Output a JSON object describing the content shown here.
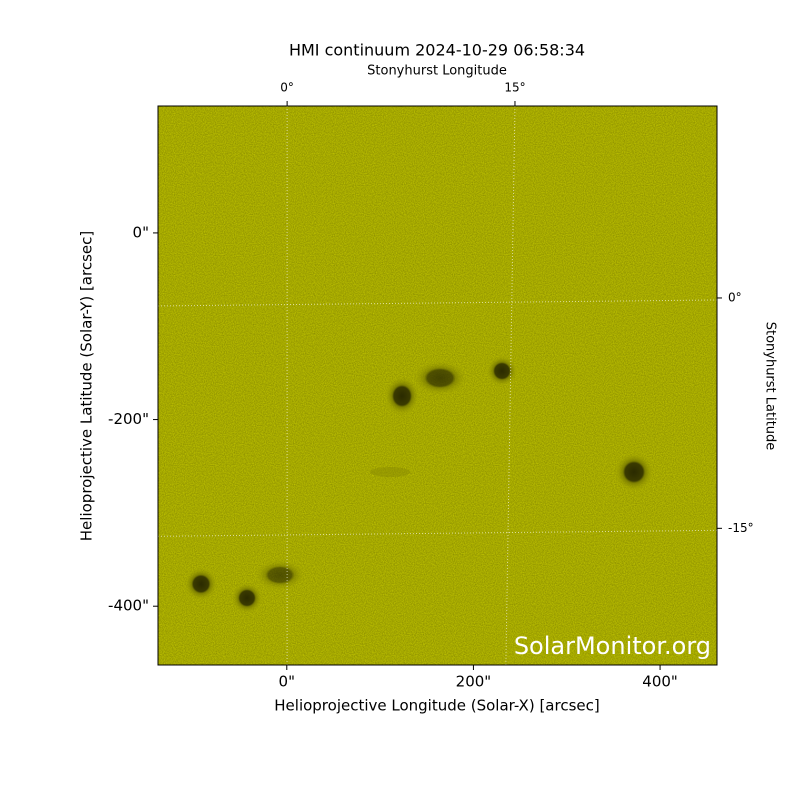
{
  "chart_data": {
    "type": "image",
    "title": "HMI continuum 2024-10-29 06:58:34",
    "x_label": "Helioprojective Longitude (Solar-X) [arcsec]",
    "y_label": "Helioprojective Latitude (Solar-Y) [arcsec]",
    "x2_label": "Stonyhurst Longitude",
    "y2_label": "Stonyhurst Latitude",
    "watermark": "SolarMonitor.org",
    "xlim": [
      -138,
      461
    ],
    "ylim": [
      -463,
      136
    ],
    "xticks": [
      {
        "value": 0,
        "label": "0\""
      },
      {
        "value": 200,
        "label": "200\""
      },
      {
        "value": 400,
        "label": "400\""
      }
    ],
    "yticks": [
      {
        "value": 0,
        "label": "0\""
      },
      {
        "value": -200,
        "label": "-200\""
      },
      {
        "value": -400,
        "label": "-400\""
      }
    ],
    "x2lim": [
      -8.5,
      28.3
    ],
    "y2lim": [
      -23.9,
      12.5
    ],
    "x2ticks": [
      {
        "value": 0,
        "label": "0°"
      },
      {
        "value": 15,
        "label": "15°"
      }
    ],
    "y2ticks": [
      {
        "value": 0,
        "label": "0°"
      },
      {
        "value": -15,
        "label": "-15°"
      }
    ],
    "color": "#c8cc00",
    "grid": true
  }
}
